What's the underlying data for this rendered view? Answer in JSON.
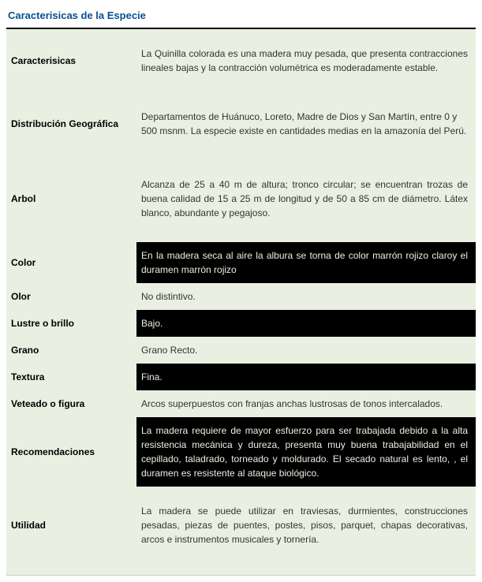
{
  "colors": {
    "title": "#0a4f8f",
    "row_bg_light": "#e9f0e1",
    "row_bg_dark": "#000000",
    "text_light": "#333333",
    "text_on_dark": "#e9f0e1",
    "label_text": "#000000"
  },
  "title": "Caracterisicas de la Especie",
  "rows": [
    {
      "label": "Caracterisicas",
      "value": "La Quinilla colorada es una madera muy pesada, que presenta contracciones lineales bajas y la contracción volumétrica es moderadamente estable.",
      "size": "tall",
      "dark": false,
      "justify": true
    },
    {
      "label": "Distribución Geográfica",
      "value": "Departamentos de Huánuco, Loreto, Madre de Dios y San Martín, entre 0 y 500 msnm. La especie existe en cantidades medias en la amazonía del Perú.",
      "size": "tall",
      "dark": false,
      "justify": false
    },
    {
      "label": "Arbol",
      "value": "Alcanza de 25 a 40 m de altura; tronco circular; se encuentran trozas de buena calidad de 15 a 25 m de longitud y de 50 a 85 cm de diámetro. Látex blanco, abundante y pegajoso.",
      "size": "taller",
      "dark": false,
      "justify": true
    },
    {
      "label": "Color",
      "value": "En la madera seca al aire la albura se torna de color marrón rojizo claroy el duramen marrón rojizo",
      "size": "short",
      "dark": true,
      "justify": true
    },
    {
      "label": "Olor",
      "value": " No distintivo.",
      "size": "short",
      "dark": false,
      "justify": false
    },
    {
      "label": "Lustre o brillo",
      "value": " Bajo.",
      "size": "short",
      "dark": true,
      "justify": false
    },
    {
      "label": "Grano",
      "value": "Grano Recto.",
      "size": "short",
      "dark": false,
      "justify": false
    },
    {
      "label": "Textura",
      "value": " Fina.",
      "size": "short",
      "dark": true,
      "justify": false
    },
    {
      "label": "Veteado o figura",
      "value": " Arcos superpuestos con franjas anchas lustrosas de tonos intercalados.",
      "size": "short",
      "dark": false,
      "justify": false
    },
    {
      "label": "Recomendaciones",
      "value": "La madera requiere de mayor esfuerzo para ser trabajada debido a la alta resistencia mecánica y dureza, presenta muy buena trabajabilidad en el cepillado, taladrado, torneado y moldurado. El secado natural es lento, , el duramen es resistente al ataque biológico.",
      "size": "normal",
      "dark": true,
      "justify": true
    },
    {
      "label": "Utilidad",
      "value": "La madera se puede utilizar en traviesas, durmientes, construcciones pesadas, piezas de puentes, postes, pisos, parquet, chapas decorativas, arcos e instrumentos musicales y tornería.",
      "size": "tall",
      "dark": false,
      "justify": true
    }
  ]
}
